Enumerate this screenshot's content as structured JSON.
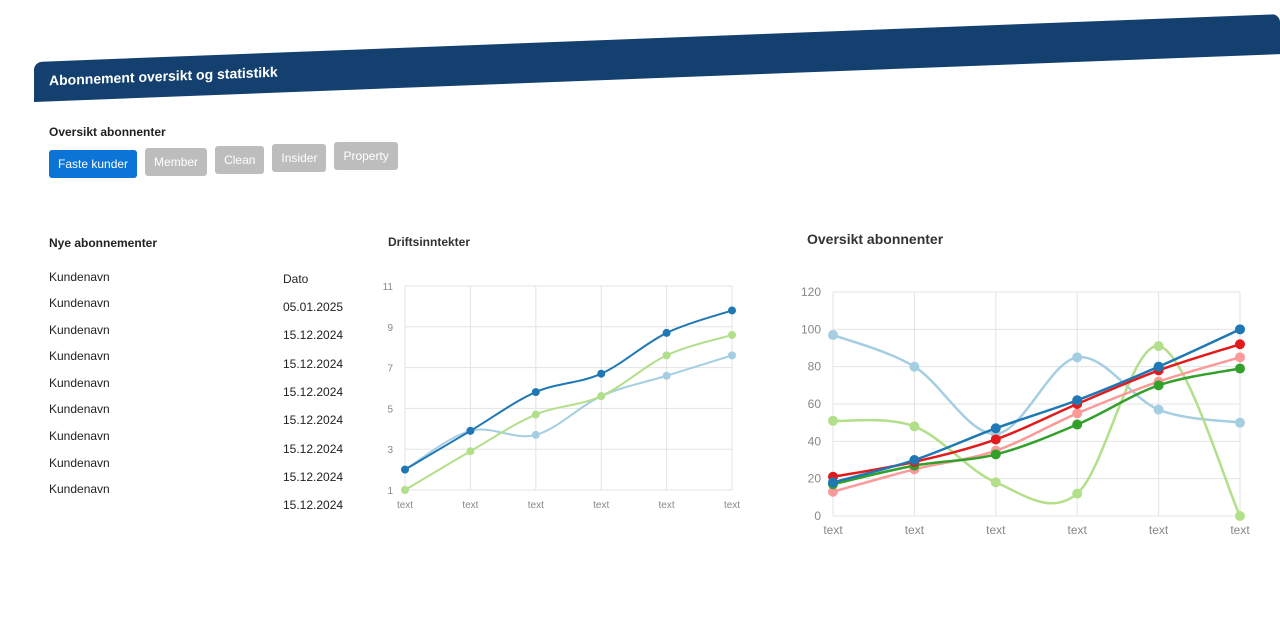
{
  "header": {
    "title": "Abonnement oversikt og statistikk"
  },
  "filter": {
    "label": "Oversikt abonnenter",
    "buttons": [
      "Faste kunder",
      "Member",
      "Clean",
      "Insider",
      "Property"
    ],
    "active": 0
  },
  "table": {
    "title": "Nye abonnementer",
    "headers": [
      "Kundenavn",
      "Dato"
    ],
    "rows": [
      [
        "Kundenavn",
        "05.01.2025"
      ],
      [
        "Kundenavn",
        "15.12.2024"
      ],
      [
        "Kundenavn",
        "15.12.2024"
      ],
      [
        "Kundenavn",
        "15.12.2024"
      ],
      [
        "Kundenavn",
        "15.12.2024"
      ],
      [
        "Kundenavn",
        "15.12.2024"
      ],
      [
        "Kundenavn",
        "15.12.2024"
      ],
      [
        "Kundenavn",
        "15.12.2024"
      ]
    ]
  },
  "chart_data": [
    {
      "type": "line",
      "title": "Driftsinntekter",
      "categories": [
        "text",
        "text",
        "text",
        "text",
        "text",
        "text"
      ],
      "ylim": [
        1,
        11
      ],
      "yticks": [
        1,
        3,
        5,
        7,
        9,
        11
      ],
      "grid": true,
      "series": [
        {
          "color": "#a6cee3",
          "values": [
            2,
            3.9,
            3.7,
            5.6,
            6.6,
            7.6
          ]
        },
        {
          "color": "#b2df8a",
          "values": [
            1,
            2.9,
            4.7,
            5.6,
            7.6,
            8.6
          ]
        },
        {
          "color": "#1f78b4",
          "values": [
            2,
            3.9,
            5.8,
            6.7,
            8.7,
            9.8
          ]
        }
      ]
    },
    {
      "type": "line",
      "title": "Oversikt abonnenter",
      "categories": [
        "text",
        "text",
        "text",
        "text",
        "text",
        "text"
      ],
      "ylim": [
        0,
        120
      ],
      "yticks": [
        0,
        20,
        40,
        60,
        80,
        100,
        120
      ],
      "grid": true,
      "series": [
        {
          "color": "#a6cee3",
          "values": [
            97,
            80,
            44,
            85,
            57,
            50
          ]
        },
        {
          "color": "#b2df8a",
          "values": [
            51,
            48,
            18,
            12,
            91,
            0
          ]
        },
        {
          "color": "#fb9a99",
          "values": [
            13,
            25,
            35,
            55,
            72,
            85
          ]
        },
        {
          "color": "#33a02c",
          "values": [
            17,
            27,
            33,
            49,
            70,
            79
          ]
        },
        {
          "color": "#e31a1c",
          "values": [
            21,
            29,
            41,
            60,
            78,
            92
          ]
        },
        {
          "color": "#1f78b4",
          "values": [
            18,
            30,
            47,
            62,
            80,
            100
          ]
        }
      ]
    }
  ]
}
